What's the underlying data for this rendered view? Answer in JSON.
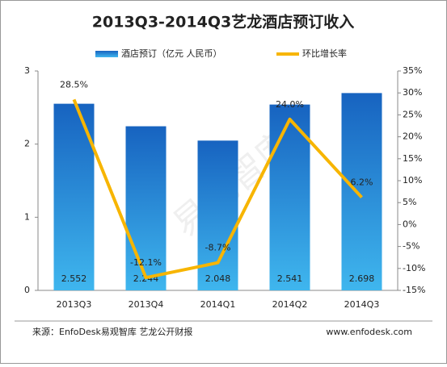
{
  "chart_data": {
    "type": "bar",
    "title": "2013Q3-2014Q3艺龙酒店预订收入",
    "categories": [
      "2013Q3",
      "2013Q4",
      "2014Q1",
      "2014Q2",
      "2014Q3"
    ],
    "series": [
      {
        "name": "酒店预订（亿元 人民币）",
        "type": "bar",
        "color": "#1f78cf",
        "values": [
          2.552,
          2.244,
          2.048,
          2.541,
          2.698
        ]
      },
      {
        "name": "环比增长率",
        "type": "line",
        "axis": "y2",
        "color": "#f7b500",
        "values": [
          28.5,
          -12.1,
          -8.7,
          24.0,
          6.2
        ],
        "value_labels": [
          "28.5%",
          "-12.1%",
          "-8.7%",
          "24.0%",
          "6.2%"
        ]
      }
    ],
    "ylim": [
      0,
      3
    ],
    "yticks": [
      0,
      1,
      2,
      3
    ],
    "y2lim": [
      -15,
      35
    ],
    "y2ticks": [
      {
        "value": -15,
        "label": "-15%"
      },
      {
        "value": -10,
        "label": "-10%"
      },
      {
        "value": -5,
        "label": "-5%"
      },
      {
        "value": 0,
        "label": "0%"
      },
      {
        "value": 5,
        "label": "5%"
      },
      {
        "value": 10,
        "label": "10%"
      },
      {
        "value": 15,
        "label": "15%"
      },
      {
        "value": 20,
        "label": "20%"
      },
      {
        "value": 25,
        "label": "25%"
      },
      {
        "value": 30,
        "label": "30%"
      },
      {
        "value": 35,
        "label": "35%"
      }
    ],
    "source": "来源：EnfoDesk易观智库 艺龙公开财报",
    "website": "www.enfodesk.com",
    "watermark": "易观智库"
  }
}
